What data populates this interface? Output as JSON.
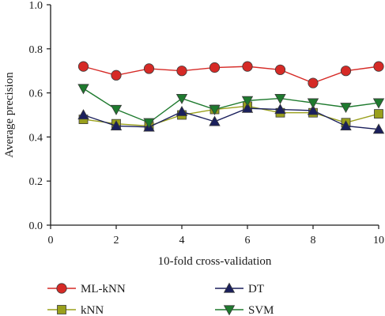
{
  "chart_data": {
    "type": "line",
    "xlabel": "10-fold cross-validation",
    "ylabel": "Average precision",
    "xlim": [
      0,
      10
    ],
    "ylim": [
      0.0,
      1.0
    ],
    "x_ticks": [
      "0",
      "2",
      "4",
      "6",
      "8",
      "10"
    ],
    "y_ticks": [
      "0.0",
      "0.2",
      "0.4",
      "0.6",
      "0.8",
      "1.0"
    ],
    "grid": false,
    "legend_position": "bottom",
    "x": [
      1,
      2,
      3,
      4,
      5,
      6,
      7,
      8,
      9,
      10
    ],
    "series": [
      {
        "name": "ML-kNN",
        "color": "#d62a26",
        "marker": "circle",
        "values": [
          0.72,
          0.68,
          0.71,
          0.7,
          0.715,
          0.72,
          0.705,
          0.645,
          0.7,
          0.72
        ]
      },
      {
        "name": "kNN",
        "color": "#9aa01c",
        "marker": "square",
        "values": [
          0.48,
          0.46,
          0.45,
          0.5,
          0.525,
          0.54,
          0.51,
          0.51,
          0.465,
          0.505
        ]
      },
      {
        "name": "DT",
        "color": "#1a1f5c",
        "marker": "triangle-up",
        "values": [
          0.5,
          0.45,
          0.445,
          0.515,
          0.47,
          0.53,
          0.525,
          0.52,
          0.45,
          0.435
        ]
      },
      {
        "name": "SVM",
        "color": "#1e7a2e",
        "marker": "triangle-down",
        "values": [
          0.62,
          0.525,
          0.465,
          0.575,
          0.525,
          0.565,
          0.575,
          0.555,
          0.535,
          0.555
        ]
      }
    ]
  }
}
